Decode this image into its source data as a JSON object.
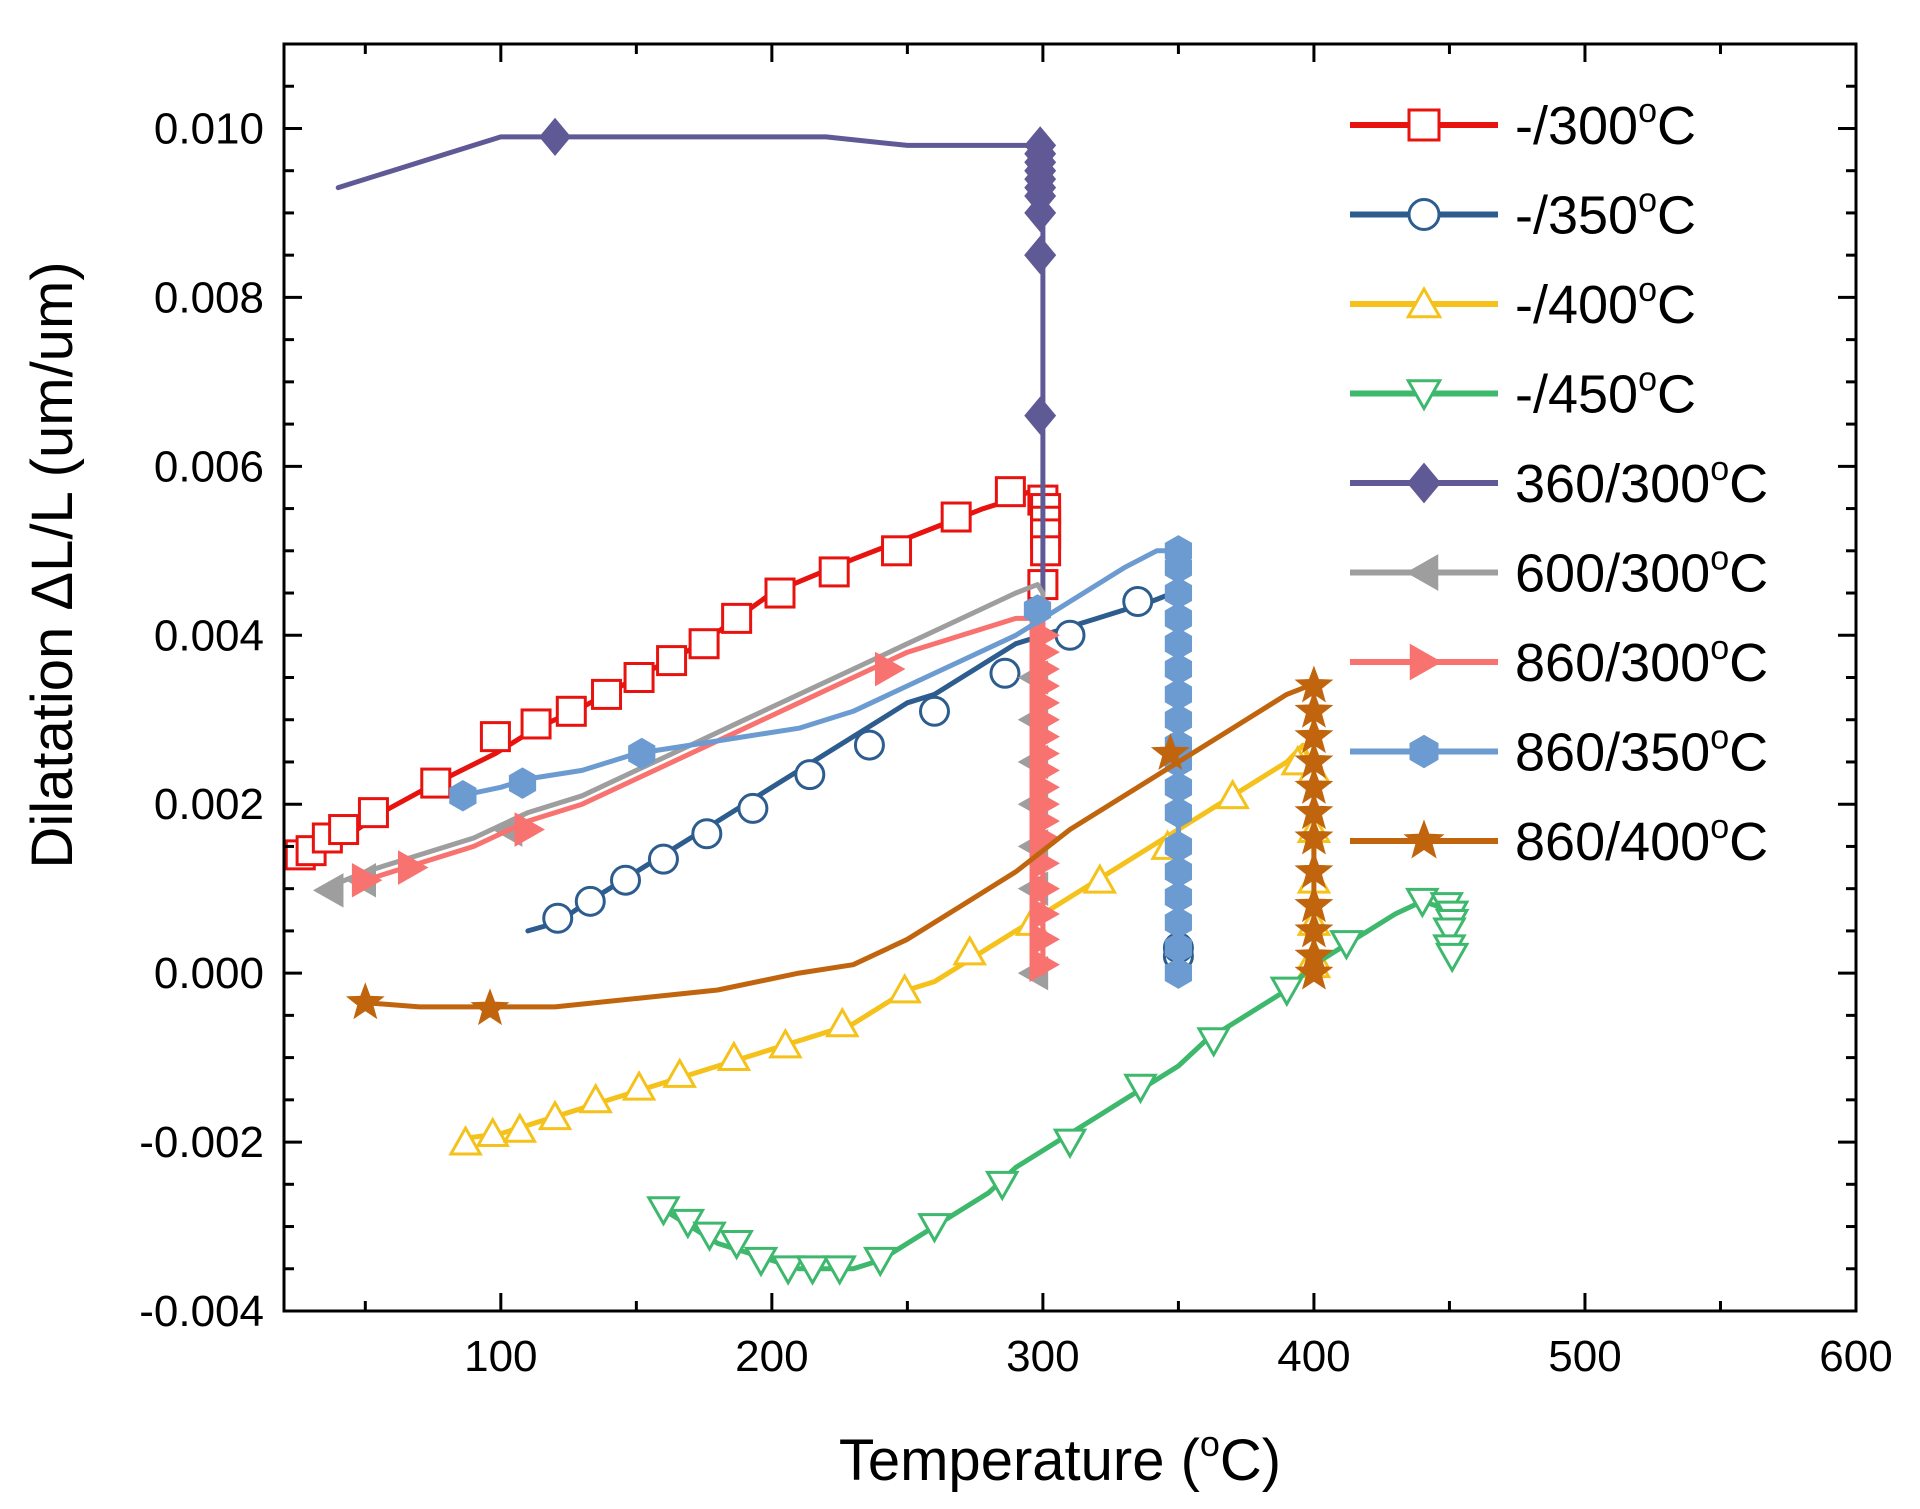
{
  "chart_data": {
    "type": "line",
    "title": "",
    "xlabel": "Temperature (",
    "xlabel_sup": "o",
    "xlabel_end": "C)",
    "ylabel": "Dilatation ΔL/L (um/um)",
    "xlim": [
      20,
      600
    ],
    "ylim": [
      -0.004,
      0.011
    ],
    "x_ticks": [
      100,
      200,
      300,
      400,
      500,
      600
    ],
    "x_tick_labels": [
      "100",
      "200",
      "300",
      "400",
      "500",
      "600"
    ],
    "y_ticks": [
      -0.004,
      -0.002,
      0.0,
      0.002,
      0.004,
      0.006,
      0.008,
      0.01
    ],
    "y_tick_labels": [
      "-0.004",
      "-0.002",
      "0.000",
      "0.002",
      "0.004",
      "0.006",
      "0.008",
      "0.010"
    ],
    "grid": false,
    "legend_position": "top-right",
    "series": [
      {
        "name": "-/300",
        "sup": "o",
        "unit": "C",
        "color": "#e8120f",
        "marker": "square",
        "filled": false,
        "x": [
          25,
          30,
          35,
          40,
          47,
          56,
          76,
          98,
          113,
          127,
          139,
          150,
          162,
          174,
          187,
          200,
          215,
          230,
          246,
          262,
          278,
          288,
          295,
          298,
          300,
          300,
          300,
          300,
          300,
          300,
          300
        ],
        "y": [
          0.0014,
          0.00145,
          0.00152,
          0.00158,
          0.0017,
          0.0019,
          0.00225,
          0.0026,
          0.0029,
          0.0031,
          0.0033,
          0.0035,
          0.0037,
          0.0039,
          0.0042,
          0.0045,
          0.0047,
          0.0049,
          0.0051,
          0.0053,
          0.0055,
          0.0056,
          0.0057,
          0.0057,
          0.0056,
          0.0055,
          0.0053,
          0.0051,
          0.0049,
          0.0047,
          0.0046
        ],
        "mx": [
          26,
          30,
          36,
          42,
          53,
          76,
          98,
          113,
          126,
          139,
          151,
          163,
          175,
          187,
          203,
          223,
          246,
          268,
          288,
          300,
          301,
          301,
          301,
          301,
          300
        ],
        "my": [
          0.0014,
          0.00145,
          0.0016,
          0.0017,
          0.0019,
          0.00225,
          0.0028,
          0.00295,
          0.0031,
          0.0033,
          0.0035,
          0.0037,
          0.0039,
          0.0042,
          0.0045,
          0.00475,
          0.005,
          0.0054,
          0.0057,
          0.0056,
          0.0055,
          0.00535,
          0.0052,
          0.005,
          0.0046
        ]
      },
      {
        "name": "-/350",
        "sup": "o",
        "unit": "C",
        "color": "#2d5c8f",
        "marker": "circle",
        "filled": false,
        "x": [
          110,
          121,
          130,
          140,
          150,
          160,
          170,
          180,
          190,
          200,
          210,
          220,
          230,
          240,
          250,
          260,
          270,
          280,
          290,
          300,
          310,
          320,
          330,
          340,
          348,
          350,
          350,
          350,
          350
        ],
        "y": [
          0.0005,
          0.0006,
          0.0008,
          0.001,
          0.0012,
          0.0014,
          0.0016,
          0.0018,
          0.002,
          0.0022,
          0.0024,
          0.0026,
          0.0028,
          0.003,
          0.0032,
          0.0033,
          0.0035,
          0.0037,
          0.0039,
          0.004,
          0.0041,
          0.0042,
          0.0043,
          0.0044,
          0.0045,
          0.0045,
          0.003,
          0.0015,
          0.0003
        ],
        "mx": [
          121,
          133,
          146,
          160,
          176,
          193,
          214,
          236,
          260,
          286,
          310,
          335,
          350,
          350
        ],
        "my": [
          0.00065,
          0.00085,
          0.0011,
          0.00135,
          0.00165,
          0.00195,
          0.00235,
          0.0027,
          0.0031,
          0.00355,
          0.004,
          0.0044,
          0.0002,
          0.0003
        ]
      },
      {
        "name": "-/400",
        "sup": "o",
        "unit": "C",
        "color": "#f5c21b",
        "marker": "triangle-up",
        "filled": false,
        "x": [
          88,
          100,
          110,
          120,
          130,
          140,
          150,
          160,
          170,
          180,
          190,
          200,
          210,
          220,
          230,
          240,
          250,
          260,
          270,
          280,
          290,
          300,
          310,
          320,
          330,
          340,
          350,
          360,
          370,
          380,
          390,
          396,
          400,
          400,
          400,
          400
        ],
        "y": [
          -0.00195,
          -0.0019,
          -0.0018,
          -0.0017,
          -0.0016,
          -0.0015,
          -0.0014,
          -0.0013,
          -0.0012,
          -0.0011,
          -0.001,
          -0.0009,
          -0.0008,
          -0.0007,
          -0.0006,
          -0.0004,
          -0.0002,
          -0.0001,
          0.0001,
          0.0003,
          0.0005,
          0.0007,
          0.0009,
          0.0011,
          0.0013,
          0.0015,
          0.0017,
          0.0019,
          0.0021,
          0.0023,
          0.0025,
          0.0027,
          0.0024,
          0.0015,
          0.0007,
          0.0001
        ],
        "mx": [
          87,
          97,
          107,
          120,
          135,
          151,
          166,
          186,
          205,
          226,
          249,
          273,
          296,
          321,
          346,
          370,
          394,
          400,
          400,
          400,
          400,
          400,
          400
        ],
        "my": [
          -0.002,
          -0.0019,
          -0.00185,
          -0.0017,
          -0.0015,
          -0.00135,
          -0.0012,
          -0.001,
          -0.00085,
          -0.0006,
          -0.0002,
          0.00025,
          0.0006,
          0.0011,
          0.0015,
          0.0021,
          0.0025,
          0.0024,
          0.0017,
          0.0011,
          0.0006,
          0.0002,
          0.0001
        ]
      },
      {
        "name": "-/450",
        "sup": "o",
        "unit": "C",
        "color": "#3db86d",
        "marker": "triangle-down",
        "filled": false,
        "x": [
          160,
          170,
          180,
          190,
          200,
          210,
          220,
          230,
          240,
          250,
          260,
          270,
          280,
          290,
          300,
          310,
          320,
          330,
          340,
          350,
          360,
          370,
          380,
          390,
          400,
          410,
          420,
          430,
          440,
          445,
          450,
          452,
          450
        ],
        "y": [
          -0.0028,
          -0.003,
          -0.0032,
          -0.0033,
          -0.0034,
          -0.0035,
          -0.0035,
          -0.0035,
          -0.0034,
          -0.0032,
          -0.003,
          -0.0028,
          -0.0026,
          -0.0023,
          -0.0021,
          -0.0019,
          -0.0017,
          -0.0015,
          -0.0013,
          -0.0011,
          -0.0008,
          -0.0006,
          -0.0004,
          -0.0002,
          0.0001,
          0.0003,
          0.0005,
          0.0007,
          0.00085,
          0.0008,
          0.0007,
          0.0005,
          0.0002
        ],
        "mx": [
          160,
          169,
          177,
          187,
          196,
          206,
          215,
          225,
          240,
          260,
          285,
          310,
          336,
          363,
          390,
          412,
          440,
          449,
          451,
          451,
          450,
          450,
          451
        ],
        "my": [
          -0.0028,
          -0.00295,
          -0.0031,
          -0.0032,
          -0.0034,
          -0.0035,
          -0.0035,
          -0.0035,
          -0.0034,
          -0.003,
          -0.0025,
          -0.002,
          -0.00135,
          -0.0008,
          -0.0002,
          0.00035,
          0.00085,
          0.0008,
          0.0007,
          0.0006,
          0.0005,
          0.0003,
          0.0002
        ]
      },
      {
        "name": "360/300",
        "sup": "o",
        "unit": "C",
        "color": "#5f5a96",
        "marker": "diamond",
        "filled": true,
        "x": [
          40,
          60,
          80,
          100,
          110,
          120,
          140,
          180,
          220,
          250,
          280,
          298,
          300,
          300,
          300,
          300,
          300
        ],
        "y": [
          0.0093,
          0.0095,
          0.0097,
          0.0099,
          0.0099,
          0.0099,
          0.0099,
          0.0099,
          0.0099,
          0.0098,
          0.0098,
          0.0098,
          0.0098,
          0.009,
          0.008,
          0.006,
          0.0045
        ],
        "mx": [
          120,
          299,
          299,
          299,
          299,
          299,
          299,
          299,
          299,
          299,
          299,
          299
        ],
        "my": [
          0.0099,
          0.0098,
          0.0097,
          0.0096,
          0.0095,
          0.0094,
          0.0093,
          0.0092,
          0.009,
          0.0085,
          0.0085,
          0.0066
        ]
      },
      {
        "name": "600/300",
        "sup": "o",
        "unit": "C",
        "color": "#9e9e9e",
        "marker": "triangle-left",
        "filled": true,
        "x": [
          35,
          50,
          70,
          90,
          110,
          130,
          150,
          170,
          190,
          210,
          230,
          250,
          270,
          290,
          298,
          300,
          300,
          300,
          300
        ],
        "y": [
          0.001,
          0.0012,
          0.0014,
          0.0016,
          0.0019,
          0.0021,
          0.0024,
          0.0027,
          0.003,
          0.0033,
          0.0036,
          0.0039,
          0.0042,
          0.0045,
          0.0046,
          0.0045,
          0.003,
          0.0015,
          0.0
        ],
        "mx": [
          37,
          49,
          103,
          297,
          297,
          297,
          297,
          297,
          297,
          297
        ],
        "my": [
          0.00098,
          0.0011,
          0.0017,
          0.0035,
          0.003,
          0.0025,
          0.002,
          0.0015,
          0.001,
          0.0
        ]
      },
      {
        "name": "860/300",
        "sup": "o",
        "unit": "C",
        "color": "#f87270",
        "marker": "triangle-right",
        "filled": true,
        "x": [
          50,
          70,
          90,
          110,
          130,
          150,
          170,
          190,
          210,
          230,
          250,
          270,
          290,
          300,
          300,
          300
        ],
        "y": [
          0.0011,
          0.0013,
          0.0015,
          0.0018,
          0.002,
          0.0023,
          0.0026,
          0.0029,
          0.0032,
          0.0035,
          0.0038,
          0.004,
          0.0042,
          0.0042,
          0.002,
          0.0
        ],
        "mx": [
          50,
          67,
          110,
          243,
          300,
          300,
          300,
          300,
          300,
          300,
          300,
          300,
          300,
          300,
          300,
          300,
          300,
          300,
          300,
          300,
          300,
          300
        ],
        "my": [
          0.0011,
          0.00125,
          0.0017,
          0.0036,
          0.004,
          0.0038,
          0.0036,
          0.0034,
          0.0032,
          0.003,
          0.0028,
          0.0026,
          0.0024,
          0.0022,
          0.002,
          0.0018,
          0.0016,
          0.0013,
          0.001,
          0.0007,
          0.0004,
          0.0001
        ]
      },
      {
        "name": "860/350",
        "sup": "o",
        "unit": "C",
        "color": "#6b9bd1",
        "marker": "hexagon",
        "filled": true,
        "x": [
          85,
          100,
          110,
          130,
          150,
          170,
          190,
          210,
          230,
          250,
          270,
          290,
          310,
          330,
          342,
          350,
          350,
          350
        ],
        "y": [
          0.0021,
          0.0022,
          0.0023,
          0.0024,
          0.0026,
          0.0027,
          0.0028,
          0.0029,
          0.0031,
          0.0034,
          0.0037,
          0.004,
          0.0044,
          0.0048,
          0.005,
          0.005,
          0.0025,
          0.0
        ],
        "mx": [
          86,
          108,
          152,
          298,
          350,
          350,
          350,
          350,
          350,
          350,
          350,
          350,
          350,
          350,
          350,
          350,
          350,
          350,
          350,
          350,
          350,
          350
        ],
        "my": [
          0.0021,
          0.00225,
          0.0026,
          0.0043,
          0.005,
          0.0048,
          0.0045,
          0.0042,
          0.0039,
          0.0036,
          0.0033,
          0.003,
          0.0027,
          0.0025,
          0.0022,
          0.0019,
          0.0015,
          0.0012,
          0.0009,
          0.0006,
          0.0003,
          0.0
        ]
      },
      {
        "name": "860/400",
        "sup": "o",
        "unit": "C",
        "color": "#c0650e",
        "marker": "star",
        "filled": true,
        "x": [
          50,
          70,
          95,
          120,
          150,
          180,
          210,
          230,
          250,
          270,
          290,
          310,
          330,
          350,
          370,
          390,
          398,
          400,
          400,
          400
        ],
        "y": [
          -0.00035,
          -0.0004,
          -0.0004,
          -0.0004,
          -0.0003,
          -0.0002,
          0.0,
          0.0001,
          0.0004,
          0.0008,
          0.0012,
          0.0017,
          0.0021,
          0.0025,
          0.0029,
          0.0033,
          0.0034,
          0.0034,
          0.0017,
          0.0
        ],
        "mx": [
          50,
          96,
          347,
          400,
          400,
          400,
          400,
          400,
          400,
          400,
          400,
          400,
          400,
          400,
          400
        ],
        "my": [
          -0.00035,
          -0.00042,
          0.0026,
          0.0034,
          0.0031,
          0.0028,
          0.0025,
          0.0022,
          0.0019,
          0.0016,
          0.0012,
          0.0008,
          0.0005,
          0.0002,
          0.0
        ]
      }
    ]
  }
}
